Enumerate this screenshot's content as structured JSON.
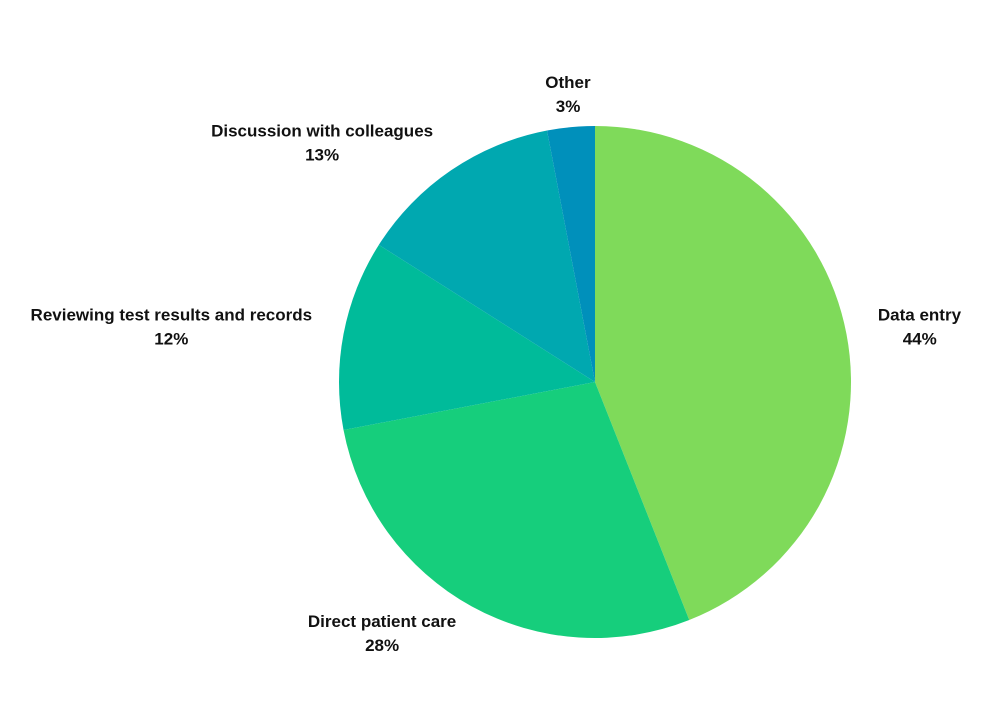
{
  "chart_data": {
    "type": "pie",
    "categories": [
      "Data entry",
      "Direct patient care",
      "Reviewing test results and records",
      "Discussion with colleagues",
      "Other"
    ],
    "values": [
      44,
      28,
      12,
      13,
      3
    ],
    "value_labels": [
      "44%",
      "28%",
      "12%",
      "13%",
      "3%"
    ],
    "colors": [
      "#7fda5a",
      "#16ce7c",
      "#00bb9a",
      "#00a8b0",
      "#0090bb"
    ]
  }
}
